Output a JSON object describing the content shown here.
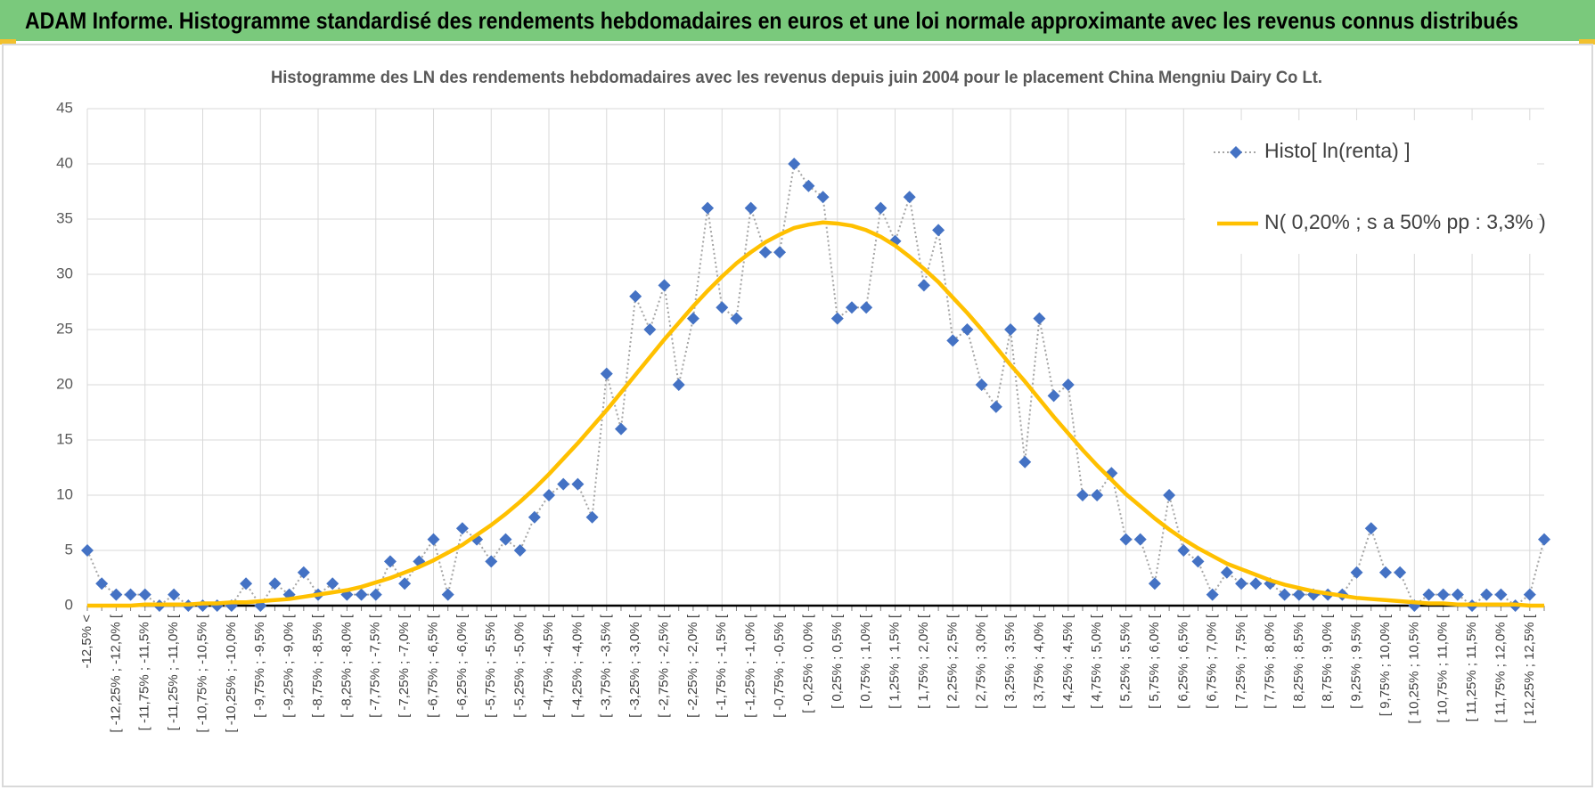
{
  "header": {
    "title": "ADAM Informe. Histogramme standardisé des rendements hebdomadaires en euros et une loi normale approximante avec les revenus connus distribués"
  },
  "chart_data": {
    "type": "line",
    "title": "Histogramme des LN des rendements hebdomadaires avec les revenus depuis juin 2004 pour le placement China Mengniu Dairy Co Lt.",
    "categories": [
      "-12,5% <",
      null,
      "[ -12,25% ; -12,0% [",
      null,
      "[ -11,75% ; -11,5% [",
      null,
      "[ -11,25% ; -11,0% [",
      null,
      "[ -10,75% ; -10,5% [",
      null,
      "[ -10,25% ; -10,0% [",
      null,
      "[ -9,75% ; -9,5% [",
      null,
      "[ -9,25% ; -9,0% [",
      null,
      "[ -8,75% ; -8,5% [",
      null,
      "[ -8,25% ; -8,0% [",
      null,
      "[ -7,75% ; -7,5% [",
      null,
      "[ -7,25% ; -7,0% [",
      null,
      "[ -6,75% ; -6,5% [",
      null,
      "[ -6,25% ; -6,0% [",
      null,
      "[ -5,75% ; -5,5% [",
      null,
      "[ -5,25% ; -5,0% [",
      null,
      "[ -4,75% ; -4,5% [",
      null,
      "[ -4,25% ; -4,0% [",
      null,
      "[ -3,75% ; -3,5% [",
      null,
      "[ -3,25% ; -3,0% [",
      null,
      "[ -2,75% ; -2,5% [",
      null,
      "[ -2,25% ; -2,0% [",
      null,
      "[ -1,75% ; -1,5% [",
      null,
      "[ -1,25% ; -1,0% [",
      null,
      "[ -0,75% ; -0,5% [",
      null,
      "[ -0,25% ; 0,0% [",
      null,
      "[ 0,25% ; 0,5% [",
      null,
      "[ 0,75% ; 1,0% [",
      null,
      "[ 1,25% ; 1,5% [",
      null,
      "[ 1,75% ; 2,0% [",
      null,
      "[ 2,25% ; 2,5% [",
      null,
      "[ 2,75% ; 3,0% [",
      null,
      "[ 3,25% ; 3,5% [",
      null,
      "[ 3,75% ; 4,0% [",
      null,
      "[ 4,25% ; 4,5% [",
      null,
      "[ 4,75% ; 5,0% [",
      null,
      "[ 5,25% ; 5,5% [",
      null,
      "[ 5,75% ; 6,0% [",
      null,
      "[ 6,25% ; 6,5% [",
      null,
      "[ 6,75% ; 7,0% [",
      null,
      "[ 7,25% ; 7,5% [",
      null,
      "[ 7,75% ; 8,0% [",
      null,
      "[ 8,25% ; 8,5% [",
      null,
      "[ 8,75% ; 9,0% [",
      null,
      "[ 9,25% ; 9,5% [",
      null,
      "[ 9,75% ; 10,0% [",
      null,
      "[ 10,25% ; 10,5% [",
      null,
      "[ 10,75% ; 11,0% [",
      null,
      "[ 11,25% ; 11,5% [",
      null,
      "[ 11,75% ; 12,0% [",
      null,
      "[ 12,25% ; 12,5% [",
      null
    ],
    "series": [
      {
        "name": "Histo[ ln(renta) ]",
        "color": "#4472c4",
        "line_color": "#a5a5a5",
        "line_style": "dotted",
        "marker": "diamond",
        "values": [
          5,
          2,
          1,
          1,
          1,
          0,
          1,
          0,
          0,
          0,
          0,
          2,
          0,
          2,
          1,
          3,
          1,
          2,
          1,
          1,
          1,
          4,
          2,
          4,
          6,
          1,
          7,
          6,
          4,
          6,
          5,
          8,
          10,
          11,
          11,
          8,
          21,
          16,
          28,
          25,
          29,
          20,
          26,
          36,
          27,
          26,
          36,
          32,
          32,
          40,
          38,
          37,
          26,
          27,
          27,
          36,
          33,
          37,
          29,
          34,
          24,
          25,
          20,
          18,
          25,
          13,
          26,
          19,
          20,
          10,
          10,
          12,
          6,
          6,
          2,
          10,
          5,
          4,
          1,
          3,
          2,
          2,
          2,
          1,
          1,
          1,
          1,
          1,
          3,
          7,
          3,
          3,
          0,
          1,
          1,
          1,
          0,
          1,
          1,
          0,
          1,
          6
        ]
      },
      {
        "name": "N( 0,20% ; s a 50% pp : 3,3% )",
        "color": "#ffc000",
        "line_style": "solid",
        "marker": "none",
        "values": [
          0.0,
          0.0,
          0.0,
          0.0,
          0.1,
          0.1,
          0.1,
          0.1,
          0.2,
          0.2,
          0.3,
          0.3,
          0.4,
          0.5,
          0.6,
          0.8,
          1.0,
          1.2,
          1.4,
          1.7,
          2.1,
          2.5,
          3.0,
          3.5,
          4.1,
          4.8,
          5.5,
          6.4,
          7.3,
          8.3,
          9.4,
          10.6,
          11.9,
          13.3,
          14.7,
          16.2,
          17.7,
          19.3,
          20.9,
          22.5,
          24.1,
          25.6,
          27.1,
          28.5,
          29.8,
          31.0,
          32.0,
          32.9,
          33.6,
          34.2,
          34.5,
          34.7,
          34.6,
          34.4,
          34.0,
          33.4,
          32.6,
          31.6,
          30.5,
          29.3,
          27.9,
          26.5,
          25.0,
          23.4,
          21.8,
          20.3,
          18.7,
          17.1,
          15.6,
          14.1,
          12.7,
          11.4,
          10.1,
          9.0,
          7.9,
          6.9,
          6.0,
          5.2,
          4.5,
          3.8,
          3.3,
          2.8,
          2.3,
          1.9,
          1.6,
          1.3,
          1.1,
          0.9,
          0.7,
          0.6,
          0.5,
          0.4,
          0.3,
          0.2,
          0.2,
          0.1,
          0.1,
          0.1,
          0.1,
          0.1,
          0.0,
          0.0
        ]
      }
    ],
    "ylim": [
      0,
      45
    ],
    "yticks": [
      0,
      5,
      10,
      15,
      20,
      25,
      30,
      35,
      40,
      45
    ],
    "grid": true,
    "legend": "upper right"
  }
}
